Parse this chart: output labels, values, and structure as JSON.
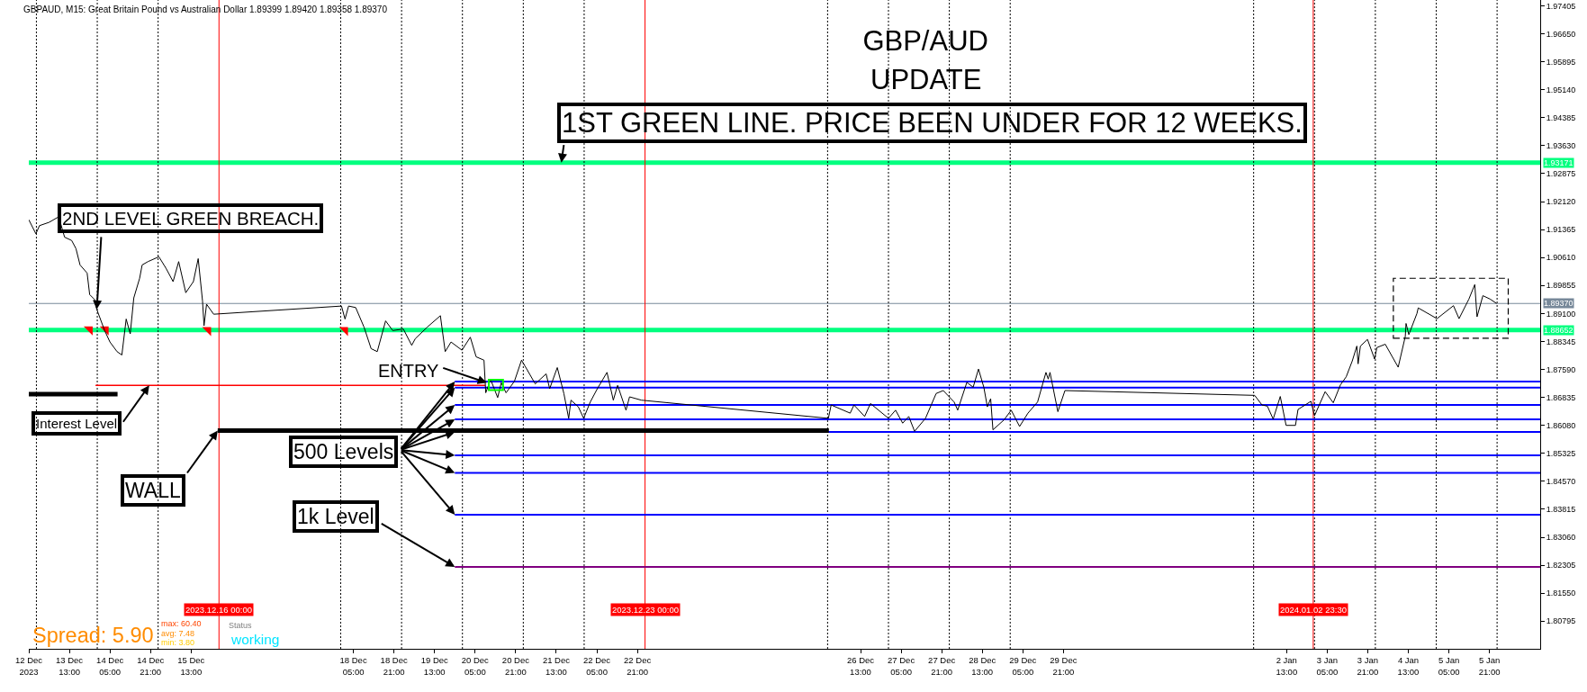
{
  "chart_data": {
    "type": "line",
    "title": "GBP/AUD",
    "subtitle": "UPDATE",
    "xlim": [
      "2023-12-12T21:00",
      "2024-01-06T17:00"
    ],
    "ylim": [
      1.8005,
      1.9756
    ],
    "xticks": [
      {
        "value": "2023-12-12T21:00",
        "label": "12 Dec 2023"
      },
      {
        "value": "2023-12-13T13:00",
        "label": "13 Dec 13:00"
      },
      {
        "value": "2023-12-14T05:00",
        "label": "14 Dec 05:00"
      },
      {
        "value": "2023-12-14T21:00",
        "label": "14 Dec 21:00"
      },
      {
        "value": "2023-12-15T13:00",
        "label": "15 Dec 13:00"
      },
      {
        "value": "2023-12-18T05:00",
        "label": "18 Dec 05:00"
      },
      {
        "value": "2023-12-18T21:00",
        "label": "18 Dec 21:00"
      },
      {
        "value": "2023-12-19T13:00",
        "label": "19 Dec 13:00"
      },
      {
        "value": "2023-12-20T05:00",
        "label": "20 Dec 05:00"
      },
      {
        "value": "2023-12-20T21:00",
        "label": "20 Dec 21:00"
      },
      {
        "value": "2023-12-21T13:00",
        "label": "21 Dec 13:00"
      },
      {
        "value": "2023-12-22T05:00",
        "label": "22 Dec 05:00"
      },
      {
        "value": "2023-12-22T21:00",
        "label": "22 Dec 21:00"
      },
      {
        "value": "2023-12-26T13:00",
        "label": "26 Dec 13:00"
      },
      {
        "value": "2023-12-27T05:00",
        "label": "27 Dec 05:00"
      },
      {
        "value": "2023-12-27T21:00",
        "label": "27 Dec 21:00"
      },
      {
        "value": "2023-12-28T13:00",
        "label": "28 Dec 13:00"
      },
      {
        "value": "2023-12-29T05:00",
        "label": "29 Dec 05:00"
      },
      {
        "value": "2023-12-29T21:00",
        "label": "29 Dec 21:00"
      },
      {
        "value": "2024-01-02T13:00",
        "label": "2 Jan 13:00"
      },
      {
        "value": "2024-01-03T05:00",
        "label": "3 Jan 05:00"
      },
      {
        "value": "2024-01-03T21:00",
        "label": "3 Jan 21:00"
      },
      {
        "value": "2024-01-04T13:00",
        "label": "4 Jan 13:00"
      },
      {
        "value": "2024-01-05T05:00",
        "label": "5 Jan 05:00"
      },
      {
        "value": "2024-01-05T21:00",
        "label": "5 Jan 21:00"
      }
    ],
    "yticks": [
      1.97405,
      {
        "value": 1.9665,
        "label": "1.96650"
      },
      1.95895,
      {
        "value": 1.9514,
        "label": "1.95140"
      },
      1.94385,
      {
        "value": 1.9363,
        "label": "1.93630"
      },
      1.92875,
      {
        "value": 1.9212,
        "label": "1.92120"
      },
      1.91365,
      {
        "value": 1.9061,
        "label": "1.90610"
      },
      1.89855,
      {
        "value": 1.891,
        "label": "1.89100"
      },
      1.88345,
      {
        "value": 1.8759,
        "label": "1.87590"
      },
      1.86835,
      {
        "value": 1.8608,
        "label": "1.86080"
      },
      1.85325,
      {
        "value": 1.8457,
        "label": "1.84570"
      },
      1.83815,
      {
        "value": 1.8306,
        "label": "1.83060"
      },
      1.82305,
      {
        "value": 1.8155,
        "label": "1.81550"
      },
      1.80795
    ],
    "grid": false,
    "series": [
      {
        "color": "#000000",
        "x": [
          "2023-12-12T21:00",
          "2023-12-12T23:48",
          "2023-12-13T01:12",
          "2023-12-13T05:00",
          "2023-12-13T08:48",
          "2023-12-13T11:06",
          "2023-12-13T13:54",
          "2023-12-13T15:36",
          "2023-12-13T17:12",
          "2023-12-13T20:00",
          "2023-12-13T21:00",
          "2023-12-13T22:54",
          "2023-12-13T23:48",
          "2023-12-14T02:54",
          "2023-12-14T05:00",
          "2023-12-14T07:48",
          "2023-12-14T09:42",
          "2023-12-14T11:24",
          "2023-12-14T13:00",
          "2023-12-14T14:24",
          "2023-12-14T16:42",
          "2023-12-14T17:42",
          "2023-12-14T20:00",
          "2023-12-15T00:18",
          "2023-12-15T03:06",
          "2023-12-15T05:54",
          "2023-12-15T08:06",
          "2023-12-15T10:54",
          "2023-12-15T13:54",
          "2023-12-15T15:48",
          "2023-12-15T17:30",
          "2023-12-15T18:06",
          "2023-12-15T19:06",
          "2023-12-15T21:54",
          "2023-12-18T00:18",
          "2023-12-18T01:42",
          "2023-12-18T03:06",
          "2023-12-18T05:54",
          "2023-12-18T09:12",
          "2023-12-18T12:00",
          "2023-12-18T14:24",
          "2023-12-18T17:42",
          "2023-12-18T20:30",
          "2023-12-19T00:42",
          "2023-12-19T04:00",
          "2023-12-19T05:24",
          "2023-12-19T10:06",
          "2023-12-19T15:18",
          "2023-12-19T17:12",
          "2023-12-19T19:30",
          "2023-12-19T23:48",
          "2023-12-20T03:06",
          "2023-12-20T05:24",
          "2023-12-20T08:30",
          "2023-12-20T09:12",
          "2023-12-20T11:06",
          "2023-12-20T13:54",
          "2023-12-20T15:18",
          "2023-12-20T17:12",
          "2023-12-20T20:30",
          "2023-12-20T23:18",
          "2023-12-21T00:36",
          "2023-12-21T04:42",
          "2023-12-21T09:00",
          "2023-12-21T10:24",
          "2023-12-21T13:24",
          "2023-12-21T16:00",
          "2023-12-21T17:54",
          "2023-12-21T18:48",
          "2023-12-21T21:42",
          "2023-12-21T23:48",
          "2023-12-22T02:24",
          "2023-12-22T05:12",
          "2023-12-22T09:00",
          "2023-12-22T11:30",
          "2023-12-22T13:12",
          "2023-12-22T16:30",
          "2023-12-22T17:54",
          "2023-12-22T22:36",
          "2023-12-26T00:18",
          "2023-12-26T01:24",
          "2023-12-26T08:54",
          "2023-12-26T10:24",
          "2023-12-26T14:36",
          "2023-12-26T16:54",
          "2023-12-27T00:00",
          "2023-12-27T02:48",
          "2023-12-27T05:36",
          "2023-12-27T08:00",
          "2023-12-27T10:18",
          "2023-12-27T14:36",
          "2023-12-27T18:48",
          "2023-12-27T21:36",
          "2023-12-28T01:54",
          "2023-12-28T03:18",
          "2023-12-28T06:54",
          "2023-12-28T09:24",
          "2023-12-28T11:30",
          "2023-12-28T13:36",
          "2023-12-28T15:00",
          "2023-12-28T16:18",
          "2023-12-28T17:12",
          "2023-12-28T21:36",
          "2023-12-29T00:24",
          "2023-12-29T03:42",
          "2023-12-29T07:00",
          "2023-12-29T10:48",
          "2023-12-29T14:06",
          "2023-12-29T15:00",
          "2023-12-29T15:42",
          "2023-12-29T18:48",
          "2023-12-29T21:36",
          "2024-01-02T00:24",
          "2024-01-02T03:18",
          "2024-01-02T05:24",
          "2024-01-02T07:42",
          "2024-01-02T10:30",
          "2024-01-02T12:48",
          "2024-01-02T16:30",
          "2024-01-02T17:30",
          "2024-01-02T22:36",
          "2024-01-03T00:00",
          "2024-01-03T04:12",
          "2024-01-03T07:24",
          "2024-01-03T10:12",
          "2024-01-03T12:30",
          "2024-01-03T14:54",
          "2024-01-03T16:42",
          "2024-01-03T17:12",
          "2024-01-03T18:06",
          "2024-01-03T20:54",
          "2024-01-03T23:42",
          "2024-01-04T00:36",
          "2024-01-04T03:54",
          "2024-01-04T09:00",
          "2024-01-04T11:48",
          "2024-01-04T12:06",
          "2024-01-04T13:12",
          "2024-01-04T16:24",
          "2024-01-04T16:54",
          "2024-01-05T00:18",
          "2024-01-05T06:48",
          "2024-01-05T09:00",
          "2024-01-05T12:54",
          "2024-01-05T15:12",
          "2024-01-05T16:06",
          "2024-01-05T18:24",
          "2024-01-05T21:12",
          "2024-01-05T23:48"
        ],
        "values": [
          1.9163,
          1.9125,
          1.9147,
          1.9156,
          1.9171,
          1.9116,
          1.9107,
          1.9085,
          1.9041,
          1.9019,
          1.8961,
          1.8948,
          1.8921,
          1.8864,
          1.8833,
          1.8807,
          1.8798,
          1.8895,
          1.8855,
          1.8952,
          1.9005,
          1.9041,
          1.905,
          1.9063,
          1.9032,
          1.8996,
          1.905,
          1.8966,
          1.8996,
          1.9058,
          1.8944,
          1.8877,
          1.8935,
          1.8908,
          1.893,
          1.8895,
          1.893,
          1.8926,
          1.8873,
          1.8815,
          1.8807,
          1.889,
          1.8864,
          1.8868,
          1.8824,
          1.8842,
          1.8873,
          1.8904,
          1.8807,
          1.8833,
          1.8811,
          1.8846,
          1.8793,
          1.8784,
          1.8696,
          1.8732,
          1.8683,
          1.8723,
          1.8696,
          1.8727,
          1.8784,
          1.8769,
          1.872,
          1.8747,
          1.8707,
          1.8764,
          1.8694,
          1.8627,
          1.8676,
          1.8658,
          1.8627,
          1.8671,
          1.8707,
          1.8751,
          1.8676,
          1.8716,
          1.8649,
          1.8685,
          1.8676,
          1.8627,
          1.8663,
          1.8641,
          1.8663,
          1.8632,
          1.8667,
          1.8627,
          1.8649,
          1.8614,
          1.8632,
          1.8592,
          1.8627,
          1.8694,
          1.8702,
          1.8671,
          1.8649,
          1.8724,
          1.8711,
          1.876,
          1.8711,
          1.8658,
          1.868,
          1.8596,
          1.8623,
          1.8649,
          1.8605,
          1.8641,
          1.8671,
          1.8751,
          1.8733,
          1.8751,
          1.8645,
          1.8702,
          1.8689,
          1.8663,
          1.866,
          1.8625,
          1.8686,
          1.8608,
          1.8608,
          1.8651,
          1.8673,
          1.8634,
          1.8699,
          1.8669,
          1.8717,
          1.8739,
          1.8782,
          1.8822,
          1.8774,
          1.8822,
          1.884,
          1.8787,
          1.8818,
          1.8827,
          1.8765,
          1.8848,
          1.8883,
          1.8853,
          1.891,
          1.8925,
          1.8896,
          1.8931,
          1.8896,
          1.8949,
          1.8988,
          1.8901,
          1.8958,
          1.8949,
          1.8937
        ]
      },
      {
        "color": "#0000ff",
        "x": [
          "2023-12-19T21:00",
          "2024-01-06T17:00"
        ],
        "values": [
          1.8726,
          1.8726
        ]
      },
      {
        "color": "#0000ff",
        "x": [
          "2023-12-19T21:00",
          "2024-01-06T17:00"
        ],
        "values": [
          1.871,
          1.871
        ]
      },
      {
        "color": "#0000ff",
        "x": [
          "2023-12-19T21:00",
          "2024-01-06T17:00"
        ],
        "values": [
          1.8663,
          1.8663
        ]
      },
      {
        "color": "#0000ff",
        "x": [
          "2023-12-19T21:00",
          "2024-01-06T17:00"
        ],
        "values": [
          1.8624,
          1.8624
        ]
      },
      {
        "color": "#0000ff",
        "x": [
          "2023-12-19T21:00",
          "2024-01-06T17:00"
        ],
        "values": [
          1.859,
          1.859
        ]
      },
      {
        "color": "#0000ff",
        "x": [
          "2023-12-19T21:00",
          "2024-01-06T17:00"
        ],
        "values": [
          1.8527,
          1.8527
        ]
      },
      {
        "color": "#0000ff",
        "x": [
          "2023-12-19T21:00",
          "2024-01-06T17:00"
        ],
        "values": [
          1.848,
          1.848
        ]
      },
      {
        "color": "#0000ff",
        "x": [
          "2023-12-19T21:00",
          "2024-01-06T17:00"
        ],
        "values": [
          1.8367,
          1.8367
        ]
      },
      {
        "color": "#800080",
        "x": [
          "2023-12-19T21:00",
          "2024-01-06T17:00"
        ],
        "values": [
          1.8226,
          1.8226
        ]
      },
      {
        "color": "#ff0000",
        "x": [
          "2023-12-13T23:18",
          "2023-12-20T09:00"
        ],
        "values": [
          1.8716,
          1.8716
        ]
      },
      {
        "color": "#000000",
        "x": [
          "2023-12-12T21:00",
          "2023-12-14T08:00"
        ],
        "values": [
          1.8692,
          1.8692
        ]
      },
      {
        "color": "#000000",
        "x": [
          "2023-12-15T23:30",
          "2023-12-26T00:30"
        ],
        "values": [
          1.8594,
          1.8594
        ]
      },
      {
        "type": "scatter",
        "marker": "triangle",
        "color": "#ff0000",
        "x": [
          "2023-12-13T21:00",
          "2023-12-14T03:18",
          "2023-12-15T19:42",
          "2023-12-18T01:42"
        ],
        "values": [
          1.8867,
          1.8867,
          1.8865,
          1.8865
        ]
      }
    ],
    "ref_lines": [
      {
        "axis": "y",
        "value": 1.93171,
        "label": "1.93171",
        "color": "#00ff7f"
      },
      {
        "axis": "y",
        "value": 1.8937,
        "label": "1.89370",
        "color": "#778899"
      },
      {
        "axis": "y",
        "value": 1.88652,
        "label": "1.88652",
        "color": "#00ff7f"
      },
      {
        "axis": "x",
        "value": "2023-12-16T00:00",
        "label": "2023.12.16 00:00",
        "color": "#ff0000"
      },
      {
        "axis": "x",
        "value": "2023-12-23T00:00",
        "label": "2023.12.23 00:00",
        "color": "#ff0000"
      },
      {
        "axis": "x",
        "value": "2024-01-02T23:30",
        "label": "2024.01.02 23:30",
        "color": "#ff0000"
      },
      {
        "axis": "x",
        "value": "2023-12-13",
        "color": "#000000",
        "line_style": "dotted"
      },
      {
        "axis": "x",
        "value": "2023-12-14",
        "color": "#000000",
        "line_style": "dotted"
      },
      {
        "axis": "x",
        "value": "2023-12-15",
        "color": "#000000",
        "line_style": "dotted"
      },
      {
        "axis": "x",
        "value": "2023-12-18",
        "color": "#000000",
        "line_style": "dotted"
      },
      {
        "axis": "x",
        "value": "2023-12-19",
        "color": "#000000",
        "line_style": "dotted"
      },
      {
        "axis": "x",
        "value": "2023-12-20",
        "color": "#000000",
        "line_style": "dotted"
      },
      {
        "axis": "x",
        "value": "2023-12-21",
        "color": "#000000",
        "line_style": "dotted"
      },
      {
        "axis": "x",
        "value": "2023-12-22",
        "color": "#000000",
        "line_style": "dotted"
      },
      {
        "axis": "x",
        "value": "2023-12-26",
        "color": "#000000",
        "line_style": "dotted"
      },
      {
        "axis": "x",
        "value": "2023-12-27",
        "color": "#000000",
        "line_style": "dotted"
      },
      {
        "axis": "x",
        "value": "2023-12-28",
        "color": "#000000",
        "line_style": "dotted"
      },
      {
        "axis": "x",
        "value": "2023-12-29",
        "color": "#000000",
        "line_style": "dotted"
      },
      {
        "axis": "x",
        "value": "2024-01-02",
        "color": "#000000",
        "line_style": "dotted"
      },
      {
        "axis": "x",
        "value": "2024-01-03",
        "color": "#000000",
        "line_style": "dotted"
      },
      {
        "axis": "x",
        "value": "2024-01-04",
        "color": "#000000",
        "line_style": "dotted"
      },
      {
        "axis": "x",
        "value": "2024-01-05",
        "color": "#000000",
        "line_style": "dotted"
      },
      {
        "axis": "x",
        "value": "2024-01-06",
        "color": "#000000",
        "line_style": "dotted"
      }
    ],
    "annotations": [
      "GBPAUD, M15: Great Britain Pound vs Australian Dollar 1.89399 1.89420 1.89358 1.89370",
      {
        "text": "1ST GREEN LINE. PRICE BEEN UNDER FOR 12 WEEKS.",
        "x": "2023-12-21T15:00",
        "y": 1.93171
      },
      {
        "text": "2ND LEVEL GREEN BREACH.",
        "x": "2023-12-13T23:48",
        "y": 1.8921
      },
      {
        "text": "ENTRY",
        "x": "2023-12-20T09:36",
        "y": 1.8723
      },
      {
        "text": "Interest Level",
        "x": "2023-12-14T20:30",
        "y": 1.8716
      },
      {
        "text": "WALL",
        "x": "2023-12-15T23:30",
        "y": 1.8594
      },
      {
        "text": "500 Levels",
        "x": "2023-12-19T21:00",
        "y": 1.8726
      },
      {
        "text": "1k Level",
        "x": "2023-12-19T21:00",
        "y": 1.8226
      },
      "Spread: 5.90",
      "max: 60.40",
      "avg: 7.48",
      "min: 3.80",
      "Status",
      "working"
    ]
  }
}
